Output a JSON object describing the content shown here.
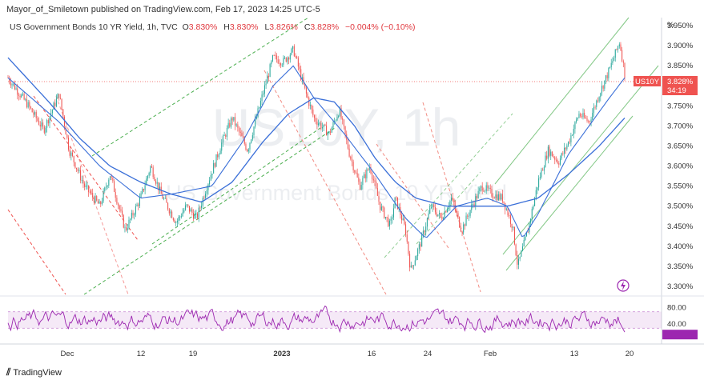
{
  "header": {
    "attribution": "Mayor_of_Smiletown published on TradingView.com, Feb 17, 2023 14:25 UTC-5"
  },
  "legend": {
    "title": "US Government Bonds 10 YR Yield, 1h, TVC",
    "o_label": "O",
    "o_value": "3.830%",
    "h_label": "H",
    "h_value": "3.830%",
    "l_label": "L",
    "l_value": "3.826%",
    "c_label": "C",
    "c_value": "3.828%",
    "change": "−0.004% (−0.10%)"
  },
  "watermark": {
    "symbol": "US10Y, 1h",
    "name": "US Government Bonds 10 YR Yield"
  },
  "price_tag": {
    "symbol": "US10Y",
    "price": "3.828%",
    "countdown": "34:19"
  },
  "footer": {
    "brand": "TradingView"
  },
  "colors": {
    "candle_up": "#26a69a",
    "candle_down": "#ef5350",
    "ma": "#3a6fd8",
    "rsi": "#9c27b0",
    "channel_green": "#4caf50",
    "channel_red": "#ef5350",
    "tag": "#ef5350"
  },
  "chart_data": {
    "type": "candlestick",
    "unit_label": "%",
    "y_ticks": [
      "3.950%",
      "3.900%",
      "3.850%",
      "3.750%",
      "3.700%",
      "3.650%",
      "3.600%",
      "3.550%",
      "3.500%",
      "3.450%",
      "3.400%",
      "3.350%",
      "3.300%"
    ],
    "ylim": [
      3.28,
      3.97
    ],
    "x_labels": [
      "Dec",
      "12",
      "19",
      "2023",
      "16",
      "24",
      "Feb",
      "13",
      "20"
    ],
    "price_path": [
      [
        0,
        3.82
      ],
      [
        4,
        3.75
      ],
      [
        7,
        3.69
      ],
      [
        10,
        3.78
      ],
      [
        12,
        3.64
      ],
      [
        15,
        3.55
      ],
      [
        18,
        3.5
      ],
      [
        20,
        3.58
      ],
      [
        23,
        3.44
      ],
      [
        26,
        3.52
      ],
      [
        28,
        3.6
      ],
      [
        30,
        3.53
      ],
      [
        33,
        3.46
      ],
      [
        35,
        3.5
      ],
      [
        37,
        3.47
      ],
      [
        39,
        3.55
      ],
      [
        42,
        3.66
      ],
      [
        44,
        3.72
      ],
      [
        47,
        3.64
      ],
      [
        50,
        3.78
      ],
      [
        52,
        3.87
      ],
      [
        54,
        3.86
      ],
      [
        56,
        3.89
      ],
      [
        58,
        3.8
      ],
      [
        60,
        3.72
      ],
      [
        63,
        3.68
      ],
      [
        65,
        3.74
      ],
      [
        67,
        3.63
      ],
      [
        69,
        3.55
      ],
      [
        71,
        3.6
      ],
      [
        73,
        3.5
      ],
      [
        75,
        3.45
      ],
      [
        76,
        3.52
      ],
      [
        78,
        3.44
      ],
      [
        79,
        3.34
      ],
      [
        81,
        3.41
      ],
      [
        83,
        3.5
      ],
      [
        85,
        3.47
      ],
      [
        87,
        3.52
      ],
      [
        89,
        3.44
      ],
      [
        91,
        3.5
      ],
      [
        93,
        3.55
      ],
      [
        95,
        3.53
      ],
      [
        97,
        3.52
      ],
      [
        99,
        3.45
      ],
      [
        100,
        3.35
      ],
      [
        102,
        3.44
      ],
      [
        104,
        3.56
      ],
      [
        106,
        3.64
      ],
      [
        108,
        3.61
      ],
      [
        110,
        3.66
      ],
      [
        112,
        3.73
      ],
      [
        114,
        3.71
      ],
      [
        116,
        3.78
      ],
      [
        118,
        3.84
      ],
      [
        120,
        3.91
      ],
      [
        121,
        3.83
      ]
    ],
    "ma_fast": [
      [
        0,
        3.82
      ],
      [
        10,
        3.71
      ],
      [
        18,
        3.6
      ],
      [
        26,
        3.52
      ],
      [
        32,
        3.53
      ],
      [
        40,
        3.55
      ],
      [
        46,
        3.66
      ],
      [
        52,
        3.8
      ],
      [
        56,
        3.85
      ],
      [
        60,
        3.77
      ],
      [
        66,
        3.68
      ],
      [
        72,
        3.58
      ],
      [
        78,
        3.47
      ],
      [
        82,
        3.42
      ],
      [
        88,
        3.5
      ],
      [
        94,
        3.52
      ],
      [
        98,
        3.5
      ],
      [
        101,
        3.42
      ],
      [
        104,
        3.48
      ],
      [
        110,
        3.63
      ],
      [
        114,
        3.7
      ],
      [
        118,
        3.77
      ],
      [
        121,
        3.82
      ]
    ],
    "ma_slow": [
      [
        0,
        3.87
      ],
      [
        8,
        3.76
      ],
      [
        14,
        3.67
      ],
      [
        20,
        3.6
      ],
      [
        26,
        3.56
      ],
      [
        32,
        3.53
      ],
      [
        38,
        3.51
      ],
      [
        44,
        3.56
      ],
      [
        50,
        3.66
      ],
      [
        55,
        3.73
      ],
      [
        60,
        3.77
      ],
      [
        64,
        3.76
      ],
      [
        68,
        3.7
      ],
      [
        72,
        3.62
      ],
      [
        76,
        3.56
      ],
      [
        80,
        3.52
      ],
      [
        86,
        3.5
      ],
      [
        92,
        3.5
      ],
      [
        98,
        3.5
      ],
      [
        104,
        3.52
      ],
      [
        110,
        3.58
      ],
      [
        116,
        3.65
      ],
      [
        121,
        3.72
      ]
    ],
    "rsi": {
      "y_ticks": [
        "80.00",
        "40.00"
      ],
      "band": [
        30,
        70
      ],
      "ylim": [
        0,
        100
      ],
      "last": 15
    },
    "legend_placement": "top-left",
    "grid": false
  }
}
